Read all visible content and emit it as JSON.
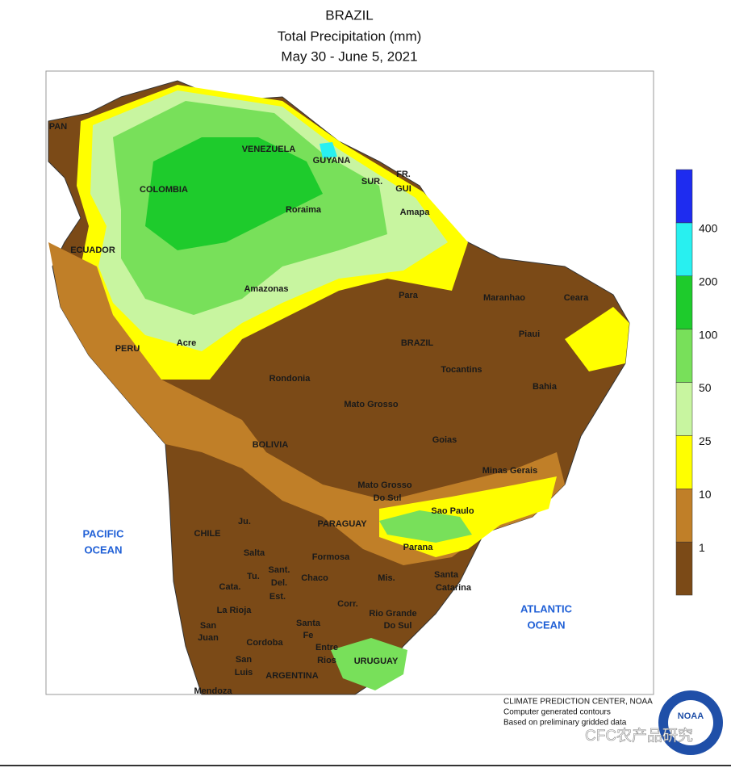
{
  "header": {
    "title": "BRAZIL",
    "subtitle": "Total Precipitation (mm)",
    "dates": "May 30 - June 5, 2021"
  },
  "legend": {
    "breaks": [
      1,
      10,
      25,
      50,
      100,
      200,
      400
    ],
    "colors": [
      "#7b4a17",
      "#c07f28",
      "#ffff00",
      "#c8f5a0",
      "#78e05a",
      "#1ecb2c",
      "#28f0f0",
      "#1e2cf0"
    ]
  },
  "labels": [
    "PAN",
    "VENEZUELA",
    "GUYANA",
    "SUR.",
    "FR.",
    "GUI",
    "COLOMBIA",
    "Roraima",
    "Amapa",
    "ECUADOR",
    "Amazonas",
    "Para",
    "Maranhao",
    "Ceara",
    "PERU",
    "Acre",
    "BRAZIL",
    "Piaui",
    "Tocantins",
    "Rondonia",
    "Bahia",
    "Mato Grosso",
    "Goias",
    "BOLIVIA",
    "Minas Gerais",
    "Mato Grosso",
    "Do Sul",
    "Sao Paulo",
    "CHILE",
    "PARAGUAY",
    "Parana",
    "Ju.",
    "Salta",
    "Formosa",
    "Sant.",
    "Del.",
    "Est.",
    "Chaco",
    "Mis.",
    "Santa",
    "Catarina",
    "Cata.",
    "Tu.",
    "La Rioja",
    "Corr.",
    "Rio Grande",
    "Do Sul",
    "San",
    "Juan",
    "Santa",
    "Fe",
    "Entre",
    "Rios",
    "URUGUAY",
    "Cordoba",
    "San",
    "Luis",
    "ARGENTINA",
    "Mendoza"
  ],
  "oceans": [
    "PACIFIC",
    "OCEAN",
    "ATLANTIC",
    "OCEAN"
  ],
  "footer": {
    "lines": [
      "CLIMATE PREDICTION CENTER, NOAA",
      "Computer generated contours",
      "Based on preliminary gridded data"
    ],
    "logo": "NOAA",
    "watermark": "CFC农产品研究"
  }
}
